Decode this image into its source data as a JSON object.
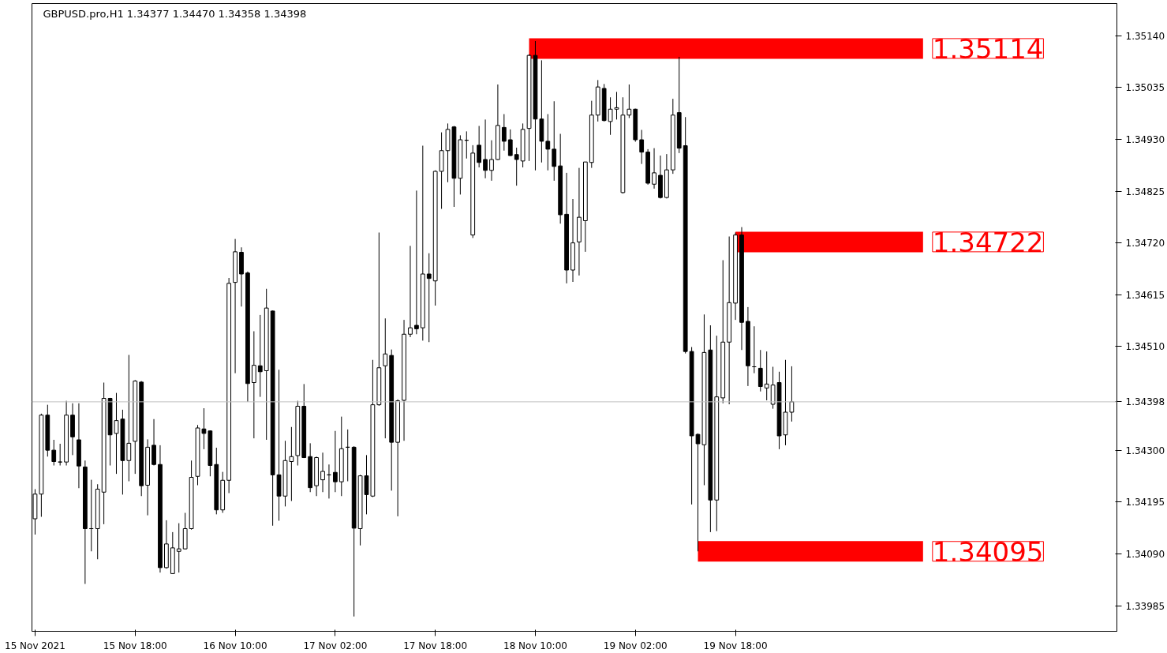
{
  "chart_data": {
    "type": "candlestick",
    "title": "GBPUSD.pro,H1  1.34377 1.34470 1.34358 1.34398",
    "x": [
      "2021-11-15T02:00",
      "2021-11-15T03:00",
      "2021-11-15T04:00",
      "2021-11-15T05:00",
      "2021-11-15T06:00",
      "2021-11-15T07:00",
      "2021-11-15T08:00",
      "2021-11-15T09:00",
      "2021-11-15T10:00",
      "2021-11-15T11:00",
      "2021-11-15T12:00",
      "2021-11-15T13:00",
      "2021-11-15T14:00",
      "2021-11-15T15:00",
      "2021-11-15T16:00",
      "2021-11-15T17:00",
      "2021-11-15T18:00",
      "2021-11-15T19:00",
      "2021-11-15T20:00",
      "2021-11-15T21:00",
      "2021-11-15T22:00",
      "2021-11-15T23:00",
      "2021-11-16T00:00",
      "2021-11-16T01:00",
      "2021-11-16T02:00",
      "2021-11-16T03:00",
      "2021-11-16T04:00",
      "2021-11-16T05:00",
      "2021-11-16T06:00",
      "2021-11-16T07:00",
      "2021-11-16T08:00",
      "2021-11-16T09:00",
      "2021-11-16T10:00",
      "2021-11-16T11:00",
      "2021-11-16T12:00",
      "2021-11-16T13:00",
      "2021-11-16T14:00",
      "2021-11-16T15:00",
      "2021-11-16T16:00",
      "2021-11-16T17:00",
      "2021-11-16T18:00",
      "2021-11-16T19:00",
      "2021-11-16T20:00",
      "2021-11-16T21:00",
      "2021-11-16T22:00",
      "2021-11-16T23:00",
      "2021-11-17T00:00",
      "2021-11-17T01:00",
      "2021-11-17T02:00",
      "2021-11-17T03:00",
      "2021-11-17T04:00",
      "2021-11-17T05:00",
      "2021-11-17T06:00",
      "2021-11-17T07:00",
      "2021-11-17T08:00",
      "2021-11-17T09:00",
      "2021-11-17T10:00",
      "2021-11-17T11:00",
      "2021-11-17T12:00",
      "2021-11-17T13:00",
      "2021-11-17T14:00",
      "2021-11-17T15:00",
      "2021-11-17T16:00",
      "2021-11-17T17:00",
      "2021-11-17T18:00",
      "2021-11-17T19:00",
      "2021-11-17T20:00",
      "2021-11-17T21:00",
      "2021-11-17T22:00",
      "2021-11-17T23:00",
      "2021-11-18T00:00",
      "2021-11-18T01:00",
      "2021-11-18T02:00",
      "2021-11-18T03:00",
      "2021-11-18T04:00",
      "2021-11-18T05:00",
      "2021-11-18T06:00",
      "2021-11-18T07:00",
      "2021-11-18T08:00",
      "2021-11-18T09:00",
      "2021-11-18T10:00",
      "2021-11-18T11:00",
      "2021-11-18T12:00",
      "2021-11-18T13:00",
      "2021-11-18T14:00",
      "2021-11-18T15:00",
      "2021-11-18T16:00",
      "2021-11-18T17:00",
      "2021-11-18T18:00",
      "2021-11-18T19:00",
      "2021-11-18T20:00",
      "2021-11-18T21:00",
      "2021-11-18T22:00",
      "2021-11-18T23:00",
      "2021-11-19T00:00",
      "2021-11-19T01:00",
      "2021-11-19T02:00",
      "2021-11-19T03:00",
      "2021-11-19T04:00",
      "2021-11-19T05:00",
      "2021-11-19T06:00",
      "2021-11-19T07:00",
      "2021-11-19T08:00",
      "2021-11-19T09:00",
      "2021-11-19T10:00",
      "2021-11-19T11:00",
      "2021-11-19T12:00",
      "2021-11-19T13:00",
      "2021-11-19T14:00",
      "2021-11-19T15:00",
      "2021-11-19T16:00",
      "2021-11-19T17:00",
      "2021-11-19T18:00",
      "2021-11-19T19:00",
      "2021-11-19T20:00",
      "2021-11-19T21:00",
      "2021-11-19T22:00",
      "2021-11-19T23:00",
      "2021-11-20T00:00",
      "2021-11-20T01:00",
      "2021-11-20T02:00",
      "2021-11-20T03:00"
    ],
    "ohlc": [
      [
        1.34161,
        1.34221,
        1.34129,
        1.34211
      ],
      [
        1.34211,
        1.34374,
        1.34165,
        1.34371
      ],
      [
        1.34371,
        1.34392,
        1.34287,
        1.343
      ],
      [
        1.343,
        1.34321,
        1.34269,
        1.34277
      ],
      [
        1.34276,
        1.34313,
        1.34269,
        1.34276
      ],
      [
        1.34276,
        1.344,
        1.34269,
        1.34371
      ],
      [
        1.34371,
        1.34395,
        1.3429,
        1.34327
      ],
      [
        1.34321,
        1.34395,
        1.34223,
        1.34268
      ],
      [
        1.34266,
        1.34279,
        1.34029,
        1.34141
      ],
      [
        1.34141,
        1.3424,
        1.34095,
        1.34141
      ],
      [
        1.34141,
        1.34231,
        1.34079,
        1.34221
      ],
      [
        1.34215,
        1.34437,
        1.3415,
        1.34405
      ],
      [
        1.34405,
        1.34406,
        1.34269,
        1.34331
      ],
      [
        1.34334,
        1.34416,
        1.34252,
        1.3436
      ],
      [
        1.34363,
        1.34382,
        1.3421,
        1.34279
      ],
      [
        1.34279,
        1.34493,
        1.34237,
        1.34314
      ],
      [
        1.34318,
        1.34442,
        1.34252,
        1.3444
      ],
      [
        1.34438,
        1.3444,
        1.34207,
        1.34228
      ],
      [
        1.34229,
        1.34322,
        1.34168,
        1.34306
      ],
      [
        1.3431,
        1.34363,
        1.34269,
        1.34271
      ],
      [
        1.34271,
        1.3431,
        1.34052,
        1.34062
      ],
      [
        1.34062,
        1.34158,
        1.3406,
        1.3411
      ],
      [
        1.3405,
        1.34134,
        1.34049,
        1.34102
      ],
      [
        1.34095,
        1.34152,
        1.34052,
        1.341
      ],
      [
        1.341,
        1.34173,
        1.34099,
        1.34141
      ],
      [
        1.34141,
        1.34279,
        1.34139,
        1.34245
      ],
      [
        1.34247,
        1.34351,
        1.34229,
        1.34345
      ],
      [
        1.34343,
        1.34385,
        1.34302,
        1.34334
      ],
      [
        1.34339,
        1.3434,
        1.34247,
        1.34269
      ],
      [
        1.34271,
        1.34305,
        1.3417,
        1.34179
      ],
      [
        1.34179,
        1.34256,
        1.34173,
        1.34239
      ],
      [
        1.34239,
        1.34649,
        1.34213,
        1.34638
      ],
      [
        1.3464,
        1.34728,
        1.34456,
        1.34702
      ],
      [
        1.34701,
        1.34711,
        1.34591,
        1.34657
      ],
      [
        1.34659,
        1.34662,
        1.34398,
        1.34435
      ],
      [
        1.34437,
        1.34541,
        1.34324,
        1.34472
      ],
      [
        1.34471,
        1.34574,
        1.34408,
        1.34459
      ],
      [
        1.34461,
        1.34627,
        1.34321,
        1.34588
      ],
      [
        1.34582,
        1.34583,
        1.34147,
        1.3425
      ],
      [
        1.3425,
        1.34463,
        1.34157,
        1.34207
      ],
      [
        1.34207,
        1.34319,
        1.34186,
        1.34279
      ],
      [
        1.34277,
        1.34347,
        1.34197,
        1.34287
      ],
      [
        1.34289,
        1.344,
        1.34269,
        1.34389
      ],
      [
        1.34389,
        1.34434,
        1.34284,
        1.34285
      ],
      [
        1.34287,
        1.34314,
        1.34215,
        1.34224
      ],
      [
        1.34228,
        1.34287,
        1.34207,
        1.34285
      ],
      [
        1.3424,
        1.34295,
        1.34215,
        1.34257
      ],
      [
        1.3425,
        1.34271,
        1.34202,
        1.3425
      ],
      [
        1.34255,
        1.34339,
        1.34215,
        1.34236
      ],
      [
        1.34236,
        1.34368,
        1.34207,
        1.34303
      ],
      [
        1.34306,
        1.34342,
        1.34237,
        1.34306
      ],
      [
        1.34306,
        1.34308,
        1.33963,
        1.34142
      ],
      [
        1.34141,
        1.3425,
        1.34107,
        1.34248
      ],
      [
        1.34248,
        1.3429,
        1.3417,
        1.3421
      ],
      [
        1.34207,
        1.34483,
        1.34205,
        1.34392
      ],
      [
        1.34392,
        1.34741,
        1.3439,
        1.34467
      ],
      [
        1.34471,
        1.34567,
        1.34324,
        1.34495
      ],
      [
        1.34492,
        1.34504,
        1.34218,
        1.34316
      ],
      [
        1.34316,
        1.34403,
        1.34166,
        1.344
      ],
      [
        1.34401,
        1.34564,
        1.34319,
        1.34535
      ],
      [
        1.34535,
        1.34714,
        1.34529,
        1.34548
      ],
      [
        1.34553,
        1.34826,
        1.34535,
        1.34546
      ],
      [
        1.34548,
        1.34917,
        1.34522,
        1.34657
      ],
      [
        1.34657,
        1.34699,
        1.34519,
        1.34648
      ],
      [
        1.34643,
        1.34867,
        1.34593,
        1.34865
      ],
      [
        1.34865,
        1.34944,
        1.34789,
        1.34907
      ],
      [
        1.34907,
        1.34962,
        1.34843,
        1.3495
      ],
      [
        1.34955,
        1.34957,
        1.34793,
        1.34851
      ],
      [
        1.34851,
        1.34938,
        1.34818,
        1.34929
      ],
      [
        1.34928,
        1.34946,
        1.34891,
        1.34928
      ],
      [
        1.34736,
        1.34918,
        1.3473,
        1.34902
      ],
      [
        1.34918,
        1.34957,
        1.34873,
        1.34883
      ],
      [
        1.34889,
        1.3497,
        1.34851,
        1.34867
      ],
      [
        1.34867,
        1.34928,
        1.34846,
        1.34889
      ],
      [
        1.34889,
        1.35041,
        1.34888,
        1.34958
      ],
      [
        1.34954,
        1.34981,
        1.34907,
        1.34926
      ],
      [
        1.34929,
        1.3495,
        1.34896,
        1.34897
      ],
      [
        1.34899,
        1.34913,
        1.34836,
        1.34889
      ],
      [
        1.34886,
        1.34962,
        1.34873,
        1.3495
      ],
      [
        1.34952,
        1.35102,
        1.34886,
        1.351
      ],
      [
        1.351,
        1.35129,
        1.34867,
        1.34971
      ],
      [
        1.34971,
        1.3509,
        1.34883,
        1.34926
      ],
      [
        1.34926,
        1.34981,
        1.34867,
        1.3491
      ],
      [
        1.3491,
        1.35007,
        1.34846,
        1.34875
      ],
      [
        1.34876,
        1.34941,
        1.34759,
        1.34777
      ],
      [
        1.34778,
        1.34862,
        1.34638,
        1.34665
      ],
      [
        1.34665,
        1.34809,
        1.34641,
        1.3472
      ],
      [
        1.34722,
        1.34872,
        1.34654,
        1.34772
      ],
      [
        1.34765,
        1.34884,
        1.34702,
        1.34884
      ],
      [
        1.34883,
        1.35008,
        1.34872,
        1.34979
      ],
      [
        1.34979,
        1.3505,
        1.34966,
        1.35036
      ],
      [
        1.35033,
        1.35042,
        1.34966,
        1.34968
      ],
      [
        1.34966,
        1.35015,
        1.34939,
        1.34991
      ],
      [
        1.34991,
        1.35026,
        1.3497,
        1.34994
      ],
      [
        1.34822,
        1.35015,
        1.3482,
        1.34979
      ],
      [
        1.34979,
        1.35041,
        1.34973,
        1.34991
      ],
      [
        1.34991,
        1.34992,
        1.34925,
        1.34929
      ],
      [
        1.34929,
        1.34949,
        1.3488,
        1.34904
      ],
      [
        1.34904,
        1.3491,
        1.34838,
        1.34841
      ],
      [
        1.34839,
        1.34912,
        1.3483,
        1.34862
      ],
      [
        1.34857,
        1.34897,
        1.3481,
        1.34812
      ],
      [
        1.34812,
        1.349,
        1.3481,
        1.34868
      ],
      [
        1.34868,
        1.35012,
        1.3486,
        1.34979
      ],
      [
        1.34984,
        1.35097,
        1.34902,
        1.34912
      ],
      [
        1.34917,
        1.34975,
        1.34496,
        1.345
      ],
      [
        1.345,
        1.34509,
        1.3419,
        1.34329
      ],
      [
        1.34332,
        1.34334,
        1.34095,
        1.34313
      ],
      [
        1.34311,
        1.34575,
        1.34229,
        1.34498
      ],
      [
        1.34503,
        1.34553,
        1.34134,
        1.34199
      ],
      [
        1.34199,
        1.34532,
        1.34136,
        1.34408
      ],
      [
        1.34406,
        1.34685,
        1.34395,
        1.34519
      ],
      [
        1.34519,
        1.34733,
        1.34393,
        1.34599
      ],
      [
        1.34598,
        1.34741,
        1.34564,
        1.34736
      ],
      [
        1.34736,
        1.34752,
        1.34503,
        1.34559
      ],
      [
        1.34561,
        1.3459,
        1.3443,
        1.34471
      ],
      [
        1.34469,
        1.34551,
        1.34456,
        1.34469
      ],
      [
        1.34466,
        1.34503,
        1.34419,
        1.34429
      ],
      [
        1.34426,
        1.345,
        1.34401,
        1.34434
      ],
      [
        1.34393,
        1.34469,
        1.34384,
        1.34432
      ],
      [
        1.34437,
        1.34459,
        1.34302,
        1.34329
      ],
      [
        1.34331,
        1.34483,
        1.3431,
        1.34377
      ],
      [
        1.34377,
        1.3447,
        1.34358,
        1.34398
      ]
    ],
    "xlim": [
      "2021-11-15T01:30",
      "2021-11-22T07:00"
    ],
    "xticks": [
      {
        "value": "2021-11-15T02:00",
        "label": "15 Nov 2021"
      },
      {
        "value": "2021-11-15T18:00",
        "label": "15 Nov 18:00"
      },
      {
        "value": "2021-11-16T10:00",
        "label": "16 Nov 10:00"
      },
      {
        "value": "2021-11-17T02:00",
        "label": "17 Nov 02:00"
      },
      {
        "value": "2021-11-17T18:00",
        "label": "17 Nov 18:00"
      },
      {
        "value": "2021-11-18T10:00",
        "label": "18 Nov 10:00"
      },
      {
        "value": "2021-11-19T02:00",
        "label": "19 Nov 02:00"
      },
      {
        "value": "2021-11-19T18:00",
        "label": "19 Nov 18:00"
      }
    ],
    "ylim": [
      1.33933,
      1.35205
    ],
    "yticks": [
      {
        "value": 1.33985,
        "label": "1.33985"
      },
      {
        "value": 1.3409,
        "label": "1.34090"
      },
      {
        "value": 1.34195,
        "label": "1.34195"
      },
      {
        "value": 1.343,
        "label": "1.34300"
      },
      {
        "value": 1.3451,
        "label": "1.34510"
      },
      {
        "value": 1.34615,
        "label": "1.34615"
      },
      {
        "value": 1.3472,
        "label": "1.34720"
      },
      {
        "value": 1.34825,
        "label": "1.34825"
      },
      {
        "value": 1.3493,
        "label": "1.34930"
      },
      {
        "value": 1.35035,
        "label": "1.35035"
      },
      {
        "value": 1.3514,
        "label": "1.35140"
      }
    ],
    "ref_lines": [
      {
        "axis": "y",
        "value": 1.34398,
        "label": "1.34398",
        "color": "#c0c0c0"
      }
    ],
    "series": [
      {
        "type": "line",
        "color": "#ff0000",
        "x": [
          "2021-11-18T09:00",
          "2021-11-21T00:00"
        ],
        "values": [
          1.35114,
          1.35114
        ]
      },
      {
        "type": "line",
        "color": "#ff0000",
        "x": [
          "2021-11-19T18:00",
          "2021-11-21T00:00"
        ],
        "values": [
          1.34722,
          1.34722
        ]
      },
      {
        "type": "line",
        "color": "#ff0000",
        "x": [
          "2021-11-19T12:00",
          "2021-11-21T00:00"
        ],
        "values": [
          1.34095,
          1.34095
        ]
      }
    ],
    "annotations": [
      {
        "text": "1.35114",
        "x": "2021-11-21T00:00",
        "y": 1.35114
      },
      {
        "text": "1.34722",
        "x": "2021-11-21T00:00",
        "y": 1.34722
      },
      {
        "text": "1.34095",
        "x": "2021-11-21T00:00",
        "y": 1.34095
      }
    ],
    "grid": false
  }
}
